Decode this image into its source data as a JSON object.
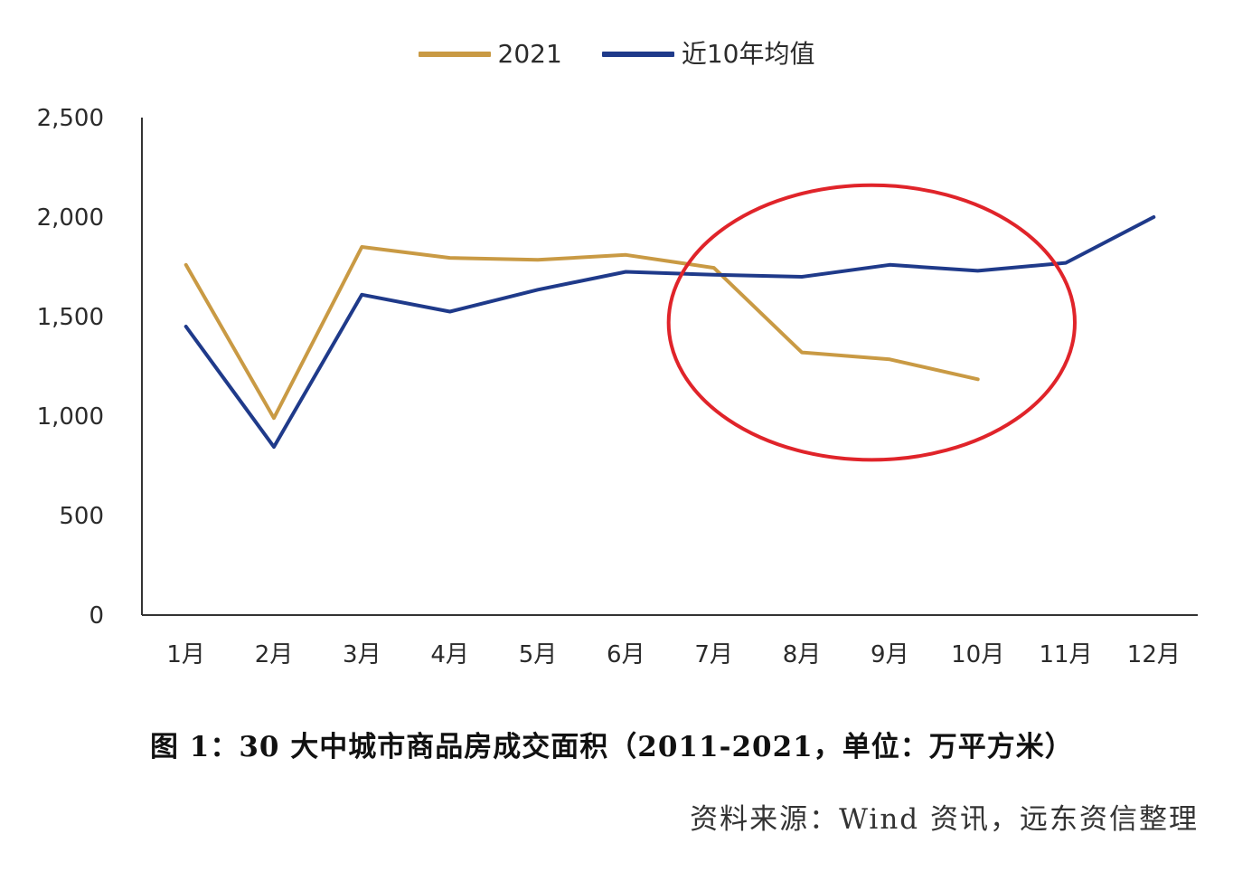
{
  "chart_data": {
    "type": "line",
    "categories": [
      "1月",
      "2月",
      "3月",
      "4月",
      "5月",
      "6月",
      "7月",
      "8月",
      "9月",
      "10月",
      "11月",
      "12月"
    ],
    "series": [
      {
        "name": "2021",
        "color": "#c99a44",
        "values": [
          1760,
          990,
          1850,
          1795,
          1785,
          1810,
          1745,
          1320,
          1285,
          1185,
          null,
          null
        ]
      },
      {
        "name": "近10年均值",
        "color": "#1f3a8a",
        "values": [
          1450,
          845,
          1610,
          1525,
          1635,
          1725,
          1710,
          1700,
          1760,
          1730,
          1770,
          2000
        ]
      }
    ],
    "ylim": [
      0,
      2500
    ],
    "yticks": [
      0,
      500,
      1000,
      1500,
      2000,
      2500
    ],
    "ytick_labels": [
      "0",
      "500",
      "1,000",
      "1,500",
      "2,000",
      "2,500"
    ],
    "grid": false,
    "legend_position": "top-center",
    "annotation": {
      "shape": "ellipse",
      "color": "#e0242a",
      "around_categories": [
        "7月",
        "8月",
        "9月",
        "10月",
        "11月"
      ],
      "y_range": [
        780,
        2160
      ]
    }
  },
  "caption": "图 1：30 大中城市商品房成交面积（2011-2021，单位：万平方米）",
  "source": "资料来源：Wind 资讯，远东资信整理"
}
